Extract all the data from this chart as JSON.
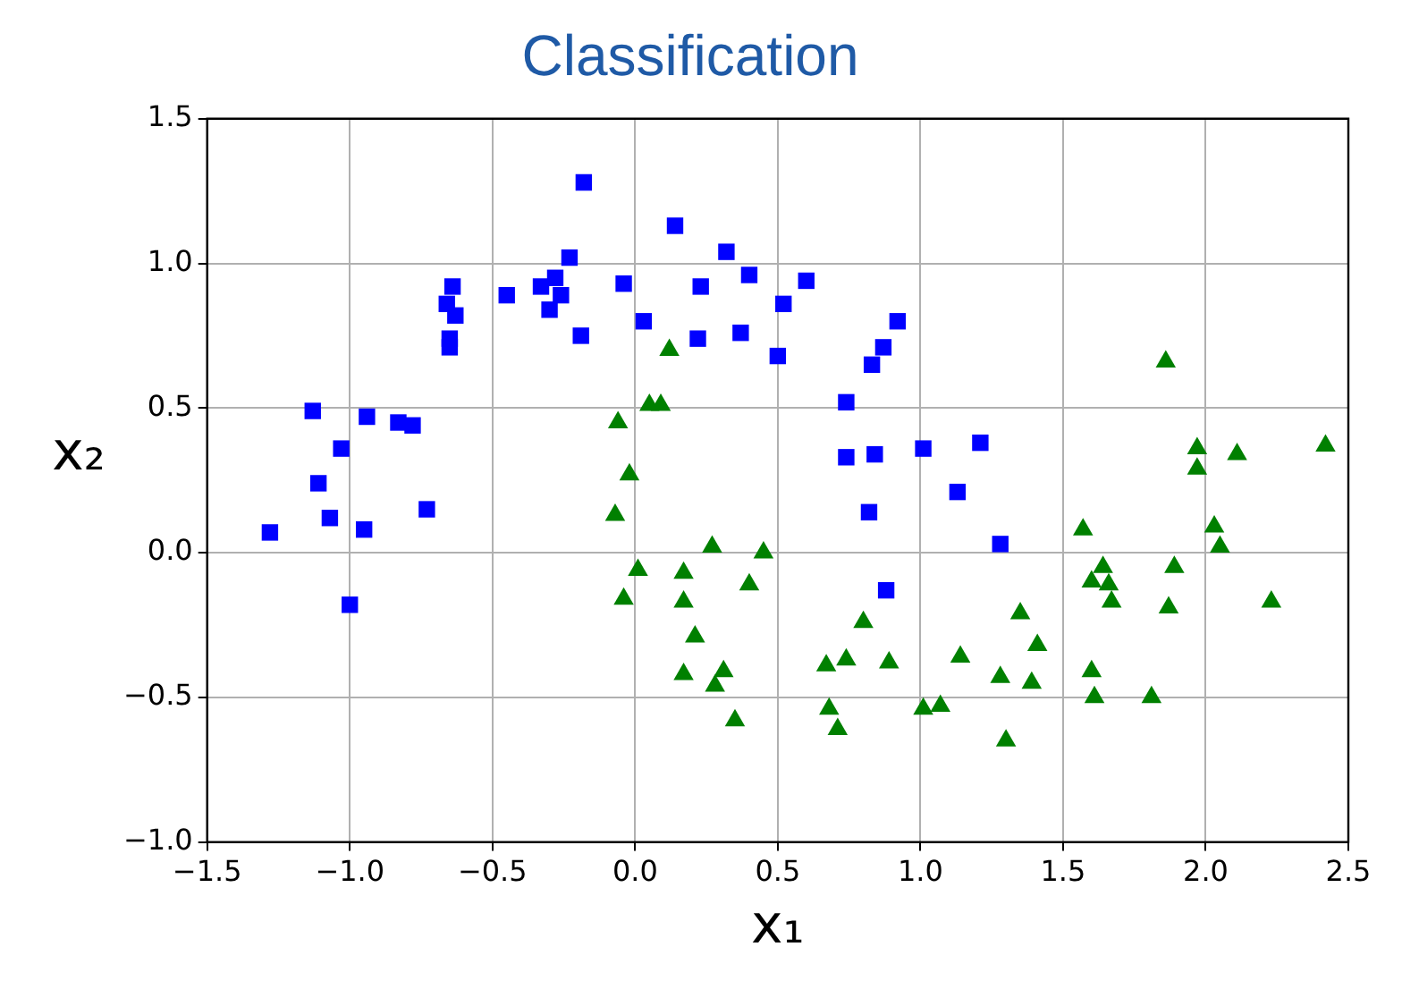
{
  "chart_data": {
    "type": "scatter",
    "title": "Classification",
    "xlabel": "x₁",
    "ylabel": "x₂",
    "xlim": [
      -1.5,
      2.5
    ],
    "xticks": [
      {
        "value": -1.5,
        "label": "−1.5"
      },
      {
        "value": -1,
        "label": "−1.0"
      },
      {
        "value": -0.5,
        "label": "−0.5"
      },
      {
        "value": 0,
        "label": "0.0"
      },
      {
        "value": 0.5,
        "label": "0.5"
      },
      {
        "value": 1,
        "label": "1.0"
      },
      {
        "value": 1.5,
        "label": "1.5"
      },
      {
        "value": 2,
        "label": "2.0"
      },
      {
        "value": 2.5,
        "label": "2.5"
      }
    ],
    "ylim": [
      -1,
      1.5
    ],
    "yticks": [
      {
        "value": -1,
        "label": "−1.0"
      },
      {
        "value": -0.5,
        "label": "−0.5"
      },
      {
        "value": 0,
        "label": "0.0"
      },
      {
        "value": 0.5,
        "label": "0.5"
      },
      {
        "value": 1,
        "label": "1.0"
      },
      {
        "value": 1.5,
        "label": "1.5"
      }
    ],
    "grid": true,
    "legend": false,
    "series": [
      {
        "color": "#0000ff",
        "marker": "square",
        "x": [
          -0.18,
          0.14,
          0.32,
          0.4,
          -0.23,
          -0.33,
          -0.28,
          -0.26,
          -0.3,
          -0.45,
          -0.04,
          0.03,
          -0.19,
          0.23,
          0.22,
          0.37,
          0.52,
          0.5,
          -0.64,
          -0.66,
          -0.63,
          -0.65,
          -0.65,
          -1.13,
          -0.94,
          -0.83,
          -0.78,
          -1.03,
          -1.11,
          -1.07,
          -0.95,
          -1.28,
          -0.73,
          -1.0,
          0.6,
          0.92,
          0.87,
          0.83,
          0.74,
          0.74,
          0.84,
          1.01,
          1.21,
          1.13,
          0.82,
          1.28,
          0.88
        ],
        "values": [
          1.28,
          1.13,
          1.04,
          0.96,
          1.02,
          0.92,
          0.95,
          0.89,
          0.84,
          0.89,
          0.93,
          0.8,
          0.75,
          0.92,
          0.74,
          0.76,
          0.86,
          0.68,
          0.92,
          0.86,
          0.82,
          0.74,
          0.71,
          0.49,
          0.47,
          0.45,
          0.44,
          0.36,
          0.24,
          0.12,
          0.08,
          0.07,
          0.15,
          -0.18,
          0.94,
          0.8,
          0.71,
          0.65,
          0.52,
          0.33,
          0.34,
          0.36,
          0.38,
          0.21,
          0.14,
          0.03,
          -0.13
        ]
      },
      {
        "color": "#008000",
        "marker": "triangle",
        "x": [
          0.12,
          -0.06,
          0.05,
          0.09,
          -0.02,
          -0.07,
          0.01,
          -0.04,
          0.27,
          0.45,
          0.17,
          0.4,
          0.17,
          0.21,
          0.17,
          0.31,
          0.28,
          0.35,
          1.86,
          1.97,
          1.97,
          2.11,
          2.42,
          1.57,
          2.03,
          2.05,
          1.64,
          1.6,
          1.66,
          1.67,
          1.89,
          1.87,
          2.23,
          1.35,
          0.8,
          1.41,
          0.67,
          0.74,
          0.89,
          1.14,
          1.28,
          1.39,
          1.6,
          1.61,
          1.81,
          0.68,
          0.71,
          1.01,
          1.07,
          1.3
        ],
        "values": [
          0.7,
          0.45,
          0.51,
          0.51,
          0.27,
          0.13,
          -0.06,
          -0.16,
          0.02,
          0.0,
          -0.07,
          -0.11,
          -0.17,
          -0.29,
          -0.42,
          -0.41,
          -0.46,
          -0.58,
          0.66,
          0.36,
          0.29,
          0.34,
          0.37,
          0.08,
          0.09,
          0.02,
          -0.05,
          -0.1,
          -0.11,
          -0.17,
          -0.05,
          -0.19,
          -0.17,
          -0.21,
          -0.24,
          -0.32,
          -0.39,
          -0.37,
          -0.38,
          -0.36,
          -0.43,
          -0.45,
          -0.41,
          -0.5,
          -0.5,
          -0.54,
          -0.61,
          -0.54,
          -0.53,
          -0.65
        ]
      }
    ]
  }
}
